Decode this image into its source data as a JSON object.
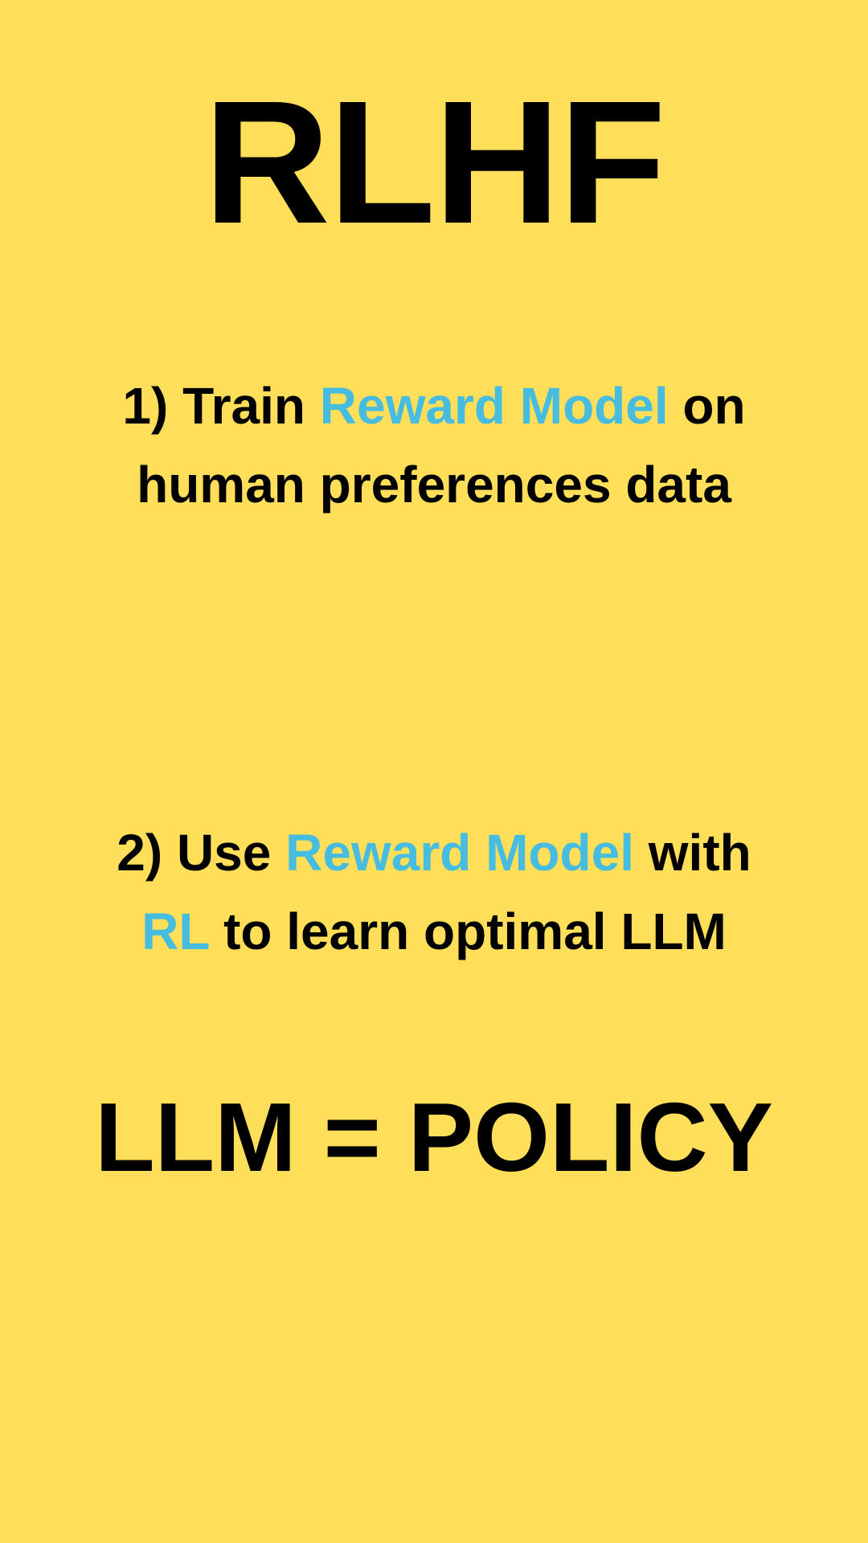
{
  "title": "RLHF",
  "step1": {
    "number": "1)",
    "verb": "Train",
    "highlight": "Reward Model",
    "rest_line1": "on",
    "line2": "human preferences data"
  },
  "step2": {
    "number": "2)",
    "verb": "Use",
    "highlight": "Reward Model",
    "rest_line1": "with",
    "highlight2": "RL",
    "line2_rest": "to learn optimal LLM"
  },
  "equation": "LLM = POLICY",
  "colors": {
    "background": "#FFDE59",
    "text": "#000000",
    "accent": "#45BCE0"
  }
}
